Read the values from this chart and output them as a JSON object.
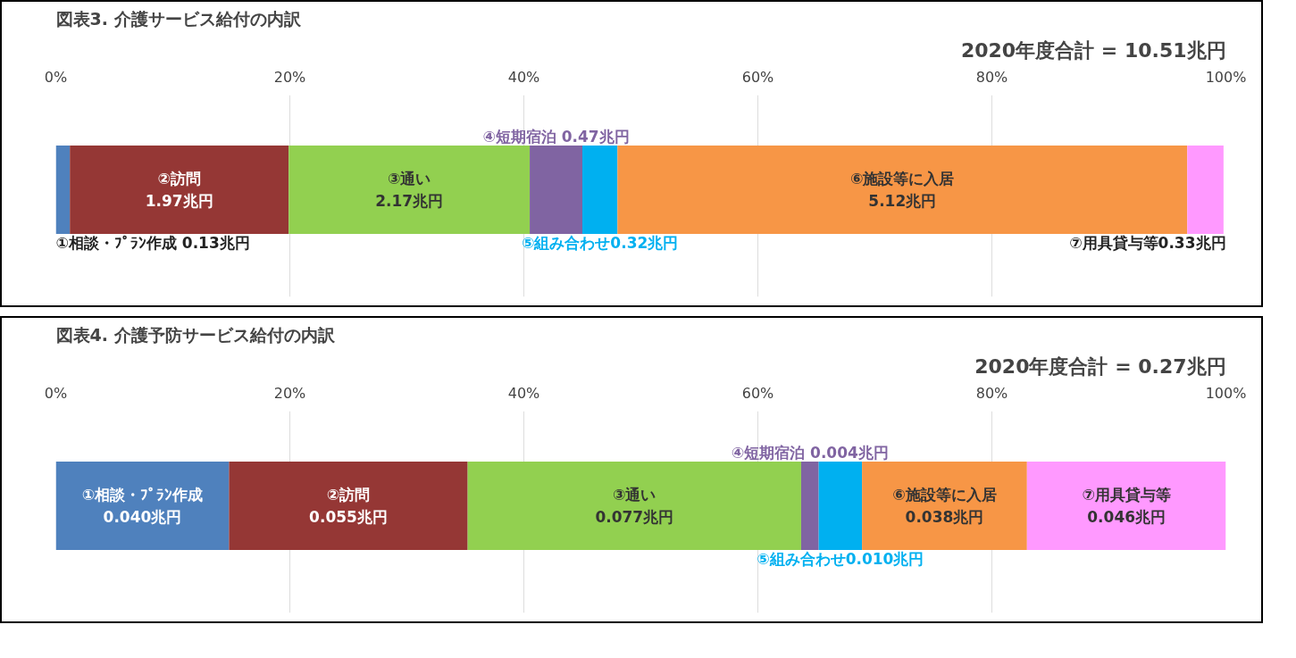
{
  "chart_data": [
    {
      "type": "bar",
      "orientation": "horizontal",
      "stacked": true,
      "title": "図表3. 介護サービス給付の内訳",
      "subtitle": "2020年度合計 = 10.51兆円",
      "categories": [
        null
      ],
      "xlim": [
        0,
        100
      ],
      "xticks": [
        {
          "value": 0,
          "label": "0%"
        },
        {
          "value": 20,
          "label": "20%"
        },
        {
          "value": 40,
          "label": "40%"
        },
        {
          "value": 60,
          "label": "60%"
        },
        {
          "value": 80,
          "label": "80%"
        },
        {
          "value": 100,
          "label": "100%"
        }
      ],
      "grid": "x",
      "legend": false,
      "series": [
        {
          "name": "①相談・ﾌﾟﾗﾝ作成 0.13兆円",
          "color": "#4f81bd",
          "values": [
            1.2
          ]
        },
        {
          "name": "②訪問 1.97兆円",
          "color": "#953735",
          "values": [
            18.7
          ]
        },
        {
          "name": "③通い 2.17兆円",
          "color": "#92d050",
          "values": [
            20.6
          ]
        },
        {
          "name": "④短期宿泊 0.47兆円",
          "color": "#8064a2",
          "values": [
            4.5
          ]
        },
        {
          "name": "⑤組み合わせ0.32兆円",
          "color": "#00b0f0",
          "values": [
            3.0
          ]
        },
        {
          "name": "⑥施設等に入居 5.12兆円",
          "color": "#f79646",
          "values": [
            48.7
          ]
        },
        {
          "name": "⑦用具貸与等0.33兆円",
          "color": "#ff99ff",
          "values": [
            3.1
          ]
        }
      ]
    },
    {
      "type": "bar",
      "orientation": "horizontal",
      "stacked": true,
      "title": "図表4. 介護予防サービス給付の内訳",
      "subtitle": "2020年度合計 = 0.27兆円",
      "categories": [
        null
      ],
      "xlim": [
        0,
        100
      ],
      "xticks": [
        {
          "value": 0,
          "label": "0%"
        },
        {
          "value": 20,
          "label": "20%"
        },
        {
          "value": 40,
          "label": "40%"
        },
        {
          "value": 60,
          "label": "60%"
        },
        {
          "value": 80,
          "label": "80%"
        },
        {
          "value": 100,
          "label": "100%"
        }
      ],
      "grid": "x",
      "legend": false,
      "series": [
        {
          "name": "①相談・ﾌﾟﾗﾝ作成 0.040兆円",
          "color": "#4f81bd",
          "values": [
            14.8
          ]
        },
        {
          "name": "②訪問 0.055兆円",
          "color": "#953735",
          "values": [
            20.4
          ]
        },
        {
          "name": "③通い 0.077兆円",
          "color": "#92d050",
          "values": [
            28.5
          ]
        },
        {
          "name": "④短期宿泊 0.004兆円",
          "color": "#8064a2",
          "values": [
            1.5
          ]
        },
        {
          "name": "⑤組み合わせ0.010兆円",
          "color": "#00b0f0",
          "values": [
            3.7
          ]
        },
        {
          "name": "⑥施設等に入居 0.038兆円",
          "color": "#f79646",
          "values": [
            14.1
          ]
        },
        {
          "name": "⑦用具貸与等 0.046兆円",
          "color": "#ff99ff",
          "values": [
            17.0
          ]
        }
      ]
    }
  ]
}
